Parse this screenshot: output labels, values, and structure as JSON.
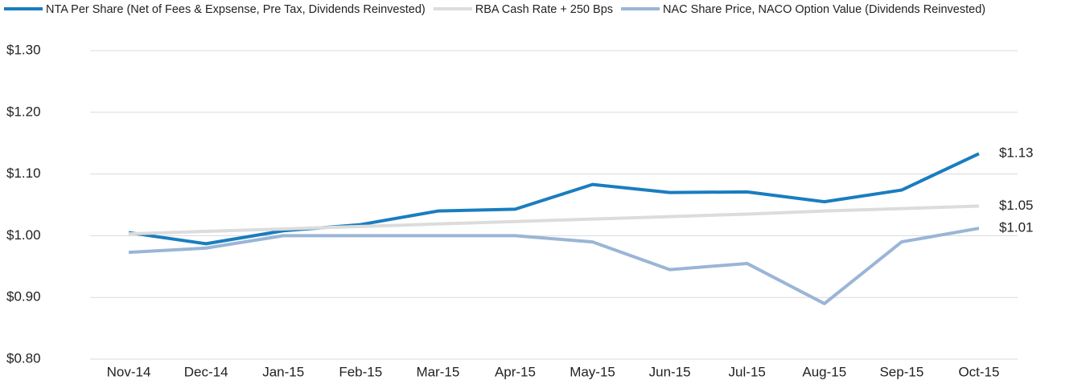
{
  "chart_data": {
    "type": "line",
    "categories": [
      "Nov-14",
      "Dec-14",
      "Jan-15",
      "Feb-15",
      "Mar-15",
      "Apr-15",
      "May-15",
      "Jun-15",
      "Jul-15",
      "Aug-15",
      "Sep-15",
      "Oct-15"
    ],
    "series": [
      {
        "name": "NTA Per Share (Net of Fees & Expsense, Pre Tax, Dividends Reinvested)",
        "color": "#1a7dbf",
        "values": [
          1.005,
          0.987,
          1.008,
          1.018,
          1.04,
          1.043,
          1.083,
          1.07,
          1.071,
          1.055,
          1.074,
          1.133
        ],
        "value_labels": [
          null,
          null,
          null,
          null,
          null,
          null,
          null,
          null,
          null,
          null,
          null,
          "$1.13"
        ]
      },
      {
        "name": "RBA Cash Rate + 250 Bps",
        "color": "#dcdcdc",
        "values": [
          1.003,
          1.007,
          1.011,
          1.015,
          1.019,
          1.023,
          1.027,
          1.031,
          1.035,
          1.04,
          1.044,
          1.048
        ],
        "value_labels": [
          null,
          null,
          null,
          null,
          null,
          null,
          null,
          null,
          null,
          null,
          null,
          "$1.05"
        ]
      },
      {
        "name": "NAC Share Price, NACO Option Value (Dividends Reinvested)",
        "color": "#9ab5d6",
        "values": [
          0.973,
          0.98,
          1.0,
          1.0,
          1.0,
          1.0,
          0.99,
          0.945,
          0.955,
          0.89,
          0.99,
          1.012
        ],
        "value_labels": [
          null,
          null,
          null,
          null,
          null,
          null,
          null,
          null,
          null,
          null,
          null,
          "$1.01"
        ]
      }
    ],
    "ylim": [
      0.8,
      1.3
    ],
    "yticks": [
      {
        "value": 0.8,
        "label": "$0.80"
      },
      {
        "value": 0.9,
        "label": "$0.90"
      },
      {
        "value": 1.0,
        "label": "$1.00"
      },
      {
        "value": 1.1,
        "label": "$1.10"
      },
      {
        "value": 1.2,
        "label": "$1.20"
      },
      {
        "value": 1.3,
        "label": "$1.30"
      }
    ],
    "grid": true,
    "legend": "top"
  }
}
